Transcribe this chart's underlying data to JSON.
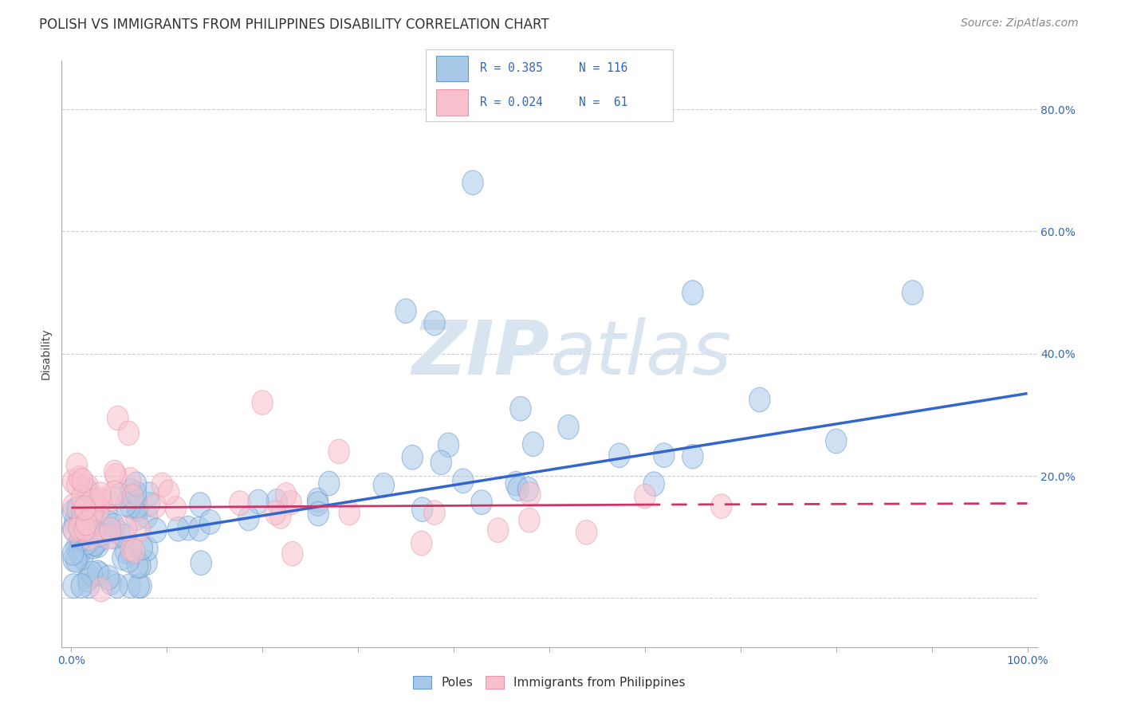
{
  "title": "POLISH VS IMMIGRANTS FROM PHILIPPINES DISABILITY CORRELATION CHART",
  "source": "Source: ZipAtlas.com",
  "ylabel": "Disability",
  "xlim": [
    -0.01,
    1.01
  ],
  "ylim": [
    -0.08,
    0.88
  ],
  "x_tick_positions": [
    0.0,
    0.1,
    0.2,
    0.3,
    0.4,
    0.5,
    0.6,
    0.7,
    0.8,
    0.9,
    1.0
  ],
  "x_tick_labels": [
    "0.0%",
    "",
    "",
    "",
    "",
    "",
    "",
    "",
    "",
    "",
    "100.0%"
  ],
  "y_tick_positions": [
    0.0,
    0.2,
    0.4,
    0.6,
    0.8
  ],
  "y_tick_labels": [
    "",
    "20.0%",
    "40.0%",
    "60.0%",
    "80.0%"
  ],
  "blue_color": "#A8C8E8",
  "pink_color": "#F8C0CC",
  "blue_edge_color": "#6699CC",
  "pink_edge_color": "#E898AA",
  "blue_line_color": "#3366CC",
  "pink_line_color": "#CC3366",
  "watermark_text": "ZIPatlas",
  "watermark_color": "#D8E4F0",
  "legend_R1": "R = 0.385",
  "legend_N1": "N = 116",
  "legend_R2": "R = 0.024",
  "legend_N2": "N =  61",
  "poles_label": "Poles",
  "philippines_label": "Immigrants from Philippines",
  "blue_line_x0": 0.0,
  "blue_line_y0": 0.085,
  "blue_line_x1": 1.0,
  "blue_line_y1": 0.335,
  "pink_line_x0": 0.0,
  "pink_line_y0": 0.148,
  "pink_line_x1_solid": 0.6,
  "pink_line_y1_solid": 0.153,
  "pink_line_x1_dash": 1.0,
  "pink_line_y1_dash": 0.155,
  "title_fontsize": 12,
  "tick_fontsize": 10,
  "source_fontsize": 10,
  "ylabel_fontsize": 10
}
